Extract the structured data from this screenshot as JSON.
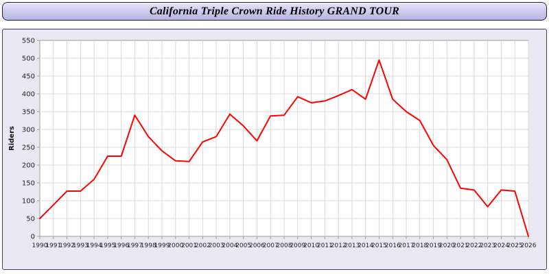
{
  "header": {
    "title": "California Triple Crown Ride History GRAND TOUR"
  },
  "chart_data": {
    "type": "line",
    "title": "California Triple Crown Ride History GRAND TOUR",
    "xlabel": "",
    "ylabel": "Riders",
    "x": [
      1990,
      1991,
      1992,
      1993,
      1994,
      1995,
      1996,
      1997,
      1998,
      1999,
      2000,
      2001,
      2002,
      2003,
      2004,
      2005,
      2006,
      2007,
      2008,
      2009,
      2010,
      2011,
      2012,
      2013,
      2014,
      2015,
      2016,
      2017,
      2018,
      2019,
      2020,
      2021,
      2022,
      2023,
      2024,
      2025,
      2026
    ],
    "series": [
      {
        "name": "Riders",
        "color": "#ff0000",
        "values": [
          50,
          88,
          127,
          127,
          160,
          225,
          225,
          340,
          280,
          240,
          212,
          210,
          265,
          280,
          343,
          310,
          268,
          338,
          340,
          392,
          375,
          380,
          395,
          412,
          385,
          495,
          385,
          350,
          325,
          255,
          215,
          135,
          130,
          83,
          130,
          127,
          0
        ]
      }
    ],
    "ylim": [
      0,
      550
    ],
    "ytick_step": 50,
    "grid": true,
    "legend_position": "none"
  },
  "colors": {
    "plot_background": "#ffffff",
    "grid_line": "#d9d9d9",
    "axis_line": "#9a9a9a",
    "tick_text": "#222222",
    "panel_background": "#e9e9f4",
    "line": "#ff0000"
  }
}
